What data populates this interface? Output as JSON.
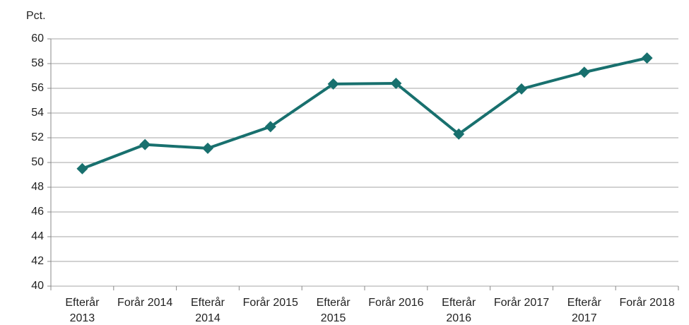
{
  "chart_data": {
    "type": "line",
    "y_unit": "Pct.",
    "categories": [
      "Efterår 2013",
      "Forår 2014",
      "Efterår 2014",
      "Forår 2015",
      "Efterår 2015",
      "Forår 2016",
      "Efterår 2016",
      "Forår 2017",
      "Efterår 2017",
      "Forår 2018"
    ],
    "values": [
      49.5,
      51.45,
      51.15,
      52.9,
      56.35,
      56.4,
      52.3,
      55.95,
      57.3,
      58.45
    ],
    "color": "#18706e",
    "ylim": [
      40,
      60
    ],
    "yticks": [
      40,
      42,
      44,
      46,
      48,
      50,
      52,
      54,
      56,
      58,
      60
    ],
    "grid": true
  }
}
